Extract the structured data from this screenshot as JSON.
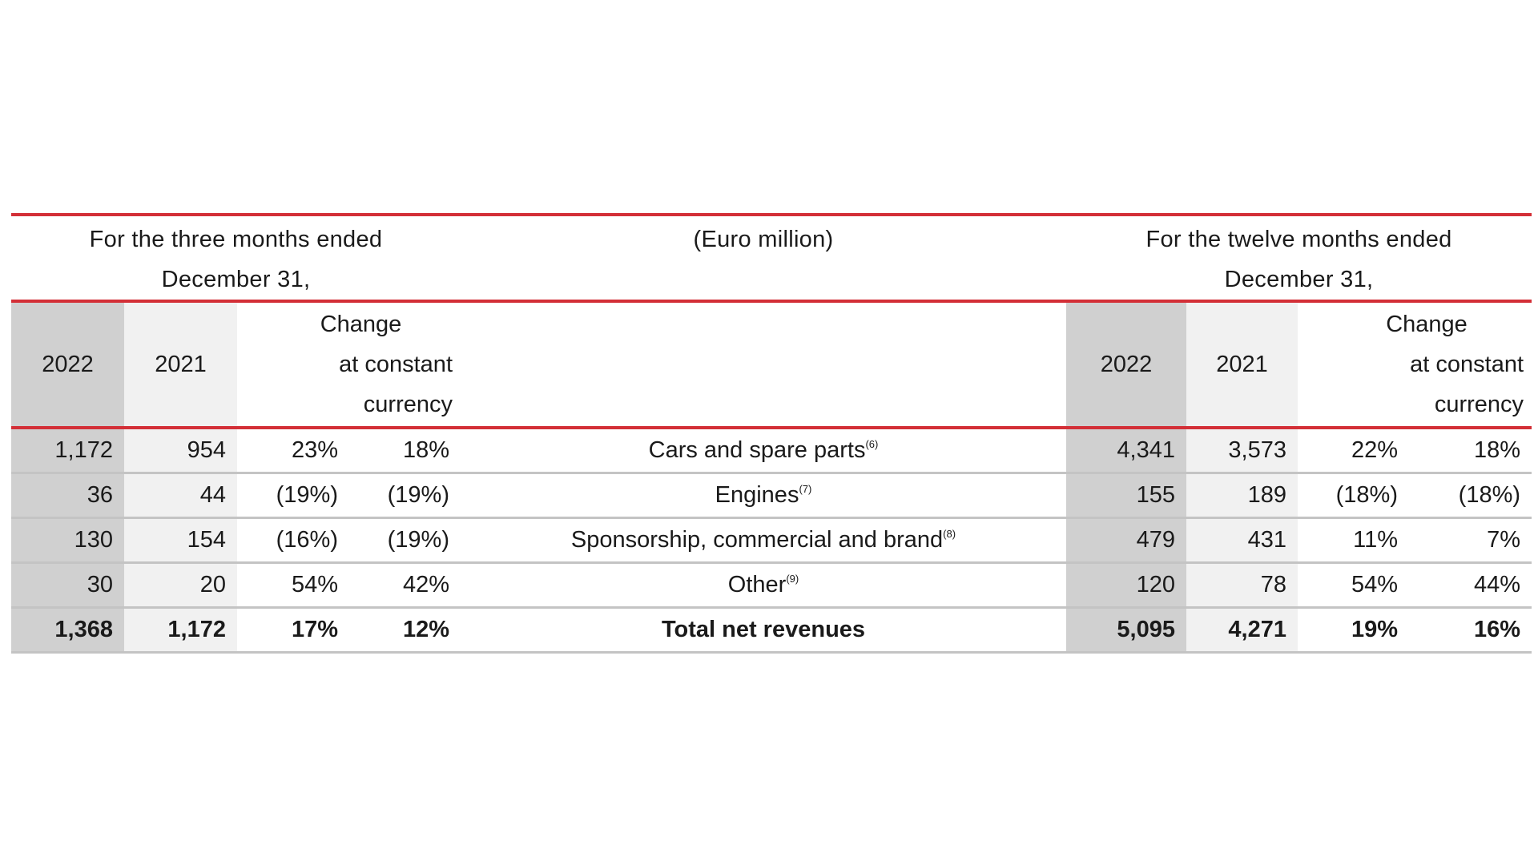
{
  "header": {
    "left_period": "For the three months ended",
    "left_date": "December 31,",
    "unit": "(Euro million)",
    "right_period": "For the twelve months ended",
    "right_date": "December 31,"
  },
  "columns": {
    "year_current": "2022",
    "year_prior": "2021",
    "change": "Change",
    "constant_line1": "at constant",
    "constant_line2": "currency"
  },
  "rows": [
    {
      "q_2022": "1,172",
      "q_2021": "954",
      "q_change": "23%",
      "q_constant": "18%",
      "label": "Cars and spare parts",
      "note": "(6)",
      "y_2022": "4,341",
      "y_2021": "3,573",
      "y_change": "22%",
      "y_constant": "18%"
    },
    {
      "q_2022": "36",
      "q_2021": "44",
      "q_change": "(19%)",
      "q_constant": "(19%)",
      "label": "Engines",
      "note": "(7)",
      "y_2022": "155",
      "y_2021": "189",
      "y_change": "(18%)",
      "y_constant": "(18%)"
    },
    {
      "q_2022": "130",
      "q_2021": "154",
      "q_change": "(16%)",
      "q_constant": "(19%)",
      "label": "Sponsorship, commercial and brand",
      "note": "(8)",
      "y_2022": "479",
      "y_2021": "431",
      "y_change": "11%",
      "y_constant": "7%"
    },
    {
      "q_2022": "30",
      "q_2021": "20",
      "q_change": "54%",
      "q_constant": "42%",
      "label": "Other",
      "note": "(9)",
      "y_2022": "120",
      "y_2021": "78",
      "y_change": "54%",
      "y_constant": "44%"
    }
  ],
  "total": {
    "q_2022": "1,368",
    "q_2021": "1,172",
    "q_change": "17%",
    "q_constant": "12%",
    "label": "Total net revenues",
    "y_2022": "5,095",
    "y_2021": "4,271",
    "y_change": "19%",
    "y_constant": "16%"
  },
  "colors": {
    "accent_red": "#d32f37",
    "shade_dark": "#d0d0d0",
    "shade_light": "#f1f1f1",
    "rule_grey": "#c4c4c4"
  }
}
